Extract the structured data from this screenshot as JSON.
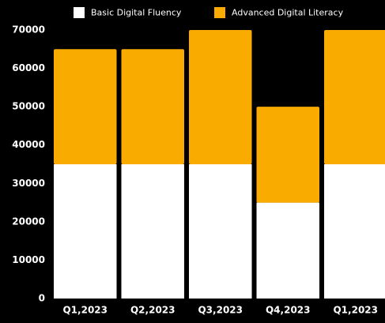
{
  "chart_data": {
    "type": "stacked_bar",
    "categories": [
      "Q1,2023",
      "Q2,2023",
      "Q3,2023",
      "Q4,2023",
      "Q1,2023"
    ],
    "series": [
      {
        "name": "Basic Digital Fluency",
        "color": "#ffffff",
        "values": [
          35000,
          35000,
          35000,
          25000,
          35000
        ]
      },
      {
        "name": "Advanced Digital Literacy",
        "color": "#f9ab00",
        "values": [
          30000,
          30000,
          35000,
          25000,
          35000
        ]
      }
    ],
    "ylim": [
      0,
      70000
    ],
    "yticks": [
      0,
      10000,
      20000,
      30000,
      40000,
      50000,
      60000,
      70000
    ],
    "grid": false,
    "legend": "top"
  }
}
